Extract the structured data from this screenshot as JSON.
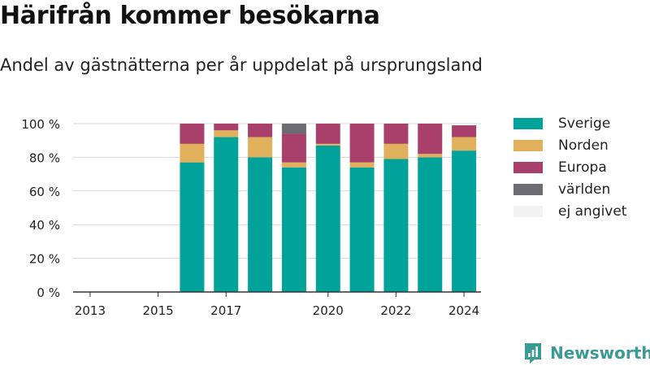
{
  "header": {
    "title": "Härifrån kommer besökarna",
    "subtitle": "Andel av gästnätterna per år uppdelat på ursprungsland"
  },
  "brand": {
    "name": "Newsworthy",
    "color": "#3a9a94"
  },
  "chart_data": {
    "type": "bar",
    "stacked": true,
    "title": "Härifrån kommer besökarna",
    "subtitle": "Andel av gästnätterna per år uppdelat på ursprungsland",
    "xlabel": "",
    "ylabel": "",
    "categories": [
      "2013",
      "2014",
      "2015",
      "2016",
      "2017",
      "2018",
      "2019",
      "2020",
      "2021",
      "2022",
      "2023",
      "2024"
    ],
    "x_tick_labels": [
      "2013",
      "2015",
      "2017",
      "2020",
      "2022",
      "2024"
    ],
    "y_ticks": [
      0,
      20,
      40,
      60,
      80,
      100
    ],
    "y_tick_suffix": " %",
    "ylim": [
      0,
      100
    ],
    "grid": true,
    "legend": "right",
    "series": [
      {
        "name": "Sverige",
        "color": "#00a29a",
        "values": [
          null,
          null,
          null,
          77,
          92,
          80,
          74,
          87,
          74,
          79,
          80,
          84
        ]
      },
      {
        "name": "Norden",
        "color": "#e0b05d",
        "values": [
          null,
          null,
          null,
          11,
          4,
          12,
          3,
          1,
          3,
          9,
          2,
          8
        ]
      },
      {
        "name": "Europa",
        "color": "#a8406b",
        "values": [
          null,
          null,
          null,
          12,
          4,
          8,
          17,
          12,
          23,
          12,
          18,
          7
        ]
      },
      {
        "name": "världen",
        "color": "#6c6c72",
        "values": [
          null,
          null,
          null,
          0,
          0,
          0,
          6,
          0,
          0,
          0,
          0,
          0
        ]
      },
      {
        "name": "ej angivet",
        "color": "#f2f2f2",
        "values": [
          null,
          null,
          null,
          0,
          0,
          0,
          0,
          0,
          0,
          0,
          0,
          0
        ]
      }
    ]
  }
}
